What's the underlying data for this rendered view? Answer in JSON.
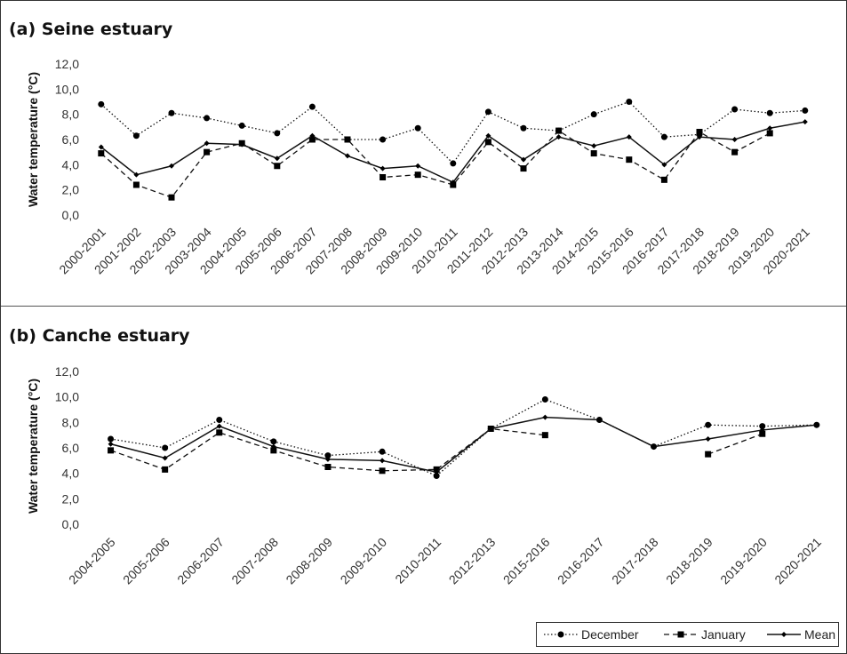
{
  "chart_data": [
    {
      "type": "line",
      "title": "(a) Seine estuary",
      "ylabel": "Water temperature (°C)",
      "ylim": [
        0,
        12
      ],
      "yticks": [
        "0,0",
        "2,0",
        "4,0",
        "6,0",
        "8,0",
        "10,0",
        "12,0"
      ],
      "grid": false,
      "categories": [
        "2000-2001",
        "2001-2002",
        "2002-2003",
        "2003-2004",
        "2004-2005",
        "2005-2006",
        "2006-2007",
        "2007-2008",
        "2008-2009",
        "2009-2010",
        "2010-2011",
        "2011-2012",
        "2012-2013",
        "2013-2014",
        "2014-2015",
        "2015-2016",
        "2016-2017",
        "2017-2018",
        "2018-2019",
        "2019-2020",
        "2020-2021"
      ],
      "series": [
        {
          "name": "December",
          "style": "dotted",
          "marker": "circle",
          "values": [
            8.8,
            6.3,
            8.1,
            7.7,
            7.1,
            6.5,
            8.6,
            6.0,
            6.0,
            6.9,
            4.1,
            8.2,
            6.9,
            6.7,
            8.0,
            9.0,
            6.2,
            6.4,
            8.4,
            8.1,
            8.3
          ]
        },
        {
          "name": "January",
          "style": "dashed",
          "marker": "square",
          "values": [
            4.9,
            2.4,
            1.4,
            5.0,
            5.7,
            3.9,
            6.0,
            6.0,
            3.0,
            3.2,
            2.4,
            5.8,
            3.7,
            6.7,
            4.9,
            4.4,
            2.8,
            6.6,
            5.0,
            6.5,
            null
          ]
        },
        {
          "name": "Mean",
          "style": "solid",
          "marker": "diamond",
          "values": [
            5.4,
            3.2,
            3.9,
            5.7,
            5.6,
            4.5,
            6.3,
            4.7,
            3.7,
            3.9,
            2.6,
            6.3,
            4.4,
            6.2,
            5.5,
            6.2,
            4.0,
            6.2,
            6.0,
            6.9,
            7.4
          ]
        }
      ]
    },
    {
      "type": "line",
      "title": "(b) Canche estuary",
      "ylabel": "Water temperature (°C)",
      "ylim": [
        0,
        12
      ],
      "yticks": [
        "0,0",
        "2,0",
        "4,0",
        "6,0",
        "8,0",
        "10,0",
        "12,0"
      ],
      "grid": false,
      "categories": [
        "2004-2005",
        "2005-2006",
        "2006-2007",
        "2007-2008",
        "2008-2009",
        "2009-2010",
        "2010-2011",
        "2012-2013",
        "2015-2016",
        "2016-2017",
        "2017-2018",
        "2018-2019",
        "2019-2020",
        "2020-2021"
      ],
      "series": [
        {
          "name": "December",
          "style": "dotted",
          "marker": "circle",
          "values": [
            6.7,
            6.0,
            8.2,
            6.5,
            5.4,
            5.7,
            3.8,
            7.5,
            9.8,
            8.2,
            6.1,
            7.8,
            7.7,
            7.8
          ]
        },
        {
          "name": "January",
          "style": "dashed",
          "marker": "square",
          "values": [
            5.8,
            4.3,
            7.2,
            5.8,
            4.5,
            4.2,
            4.3,
            7.5,
            7.0,
            null,
            null,
            5.5,
            7.1,
            null
          ]
        },
        {
          "name": "Mean",
          "style": "solid",
          "marker": "diamond",
          "values": [
            6.3,
            5.2,
            7.7,
            6.1,
            5.1,
            5.0,
            4.1,
            7.5,
            8.4,
            8.2,
            6.1,
            6.7,
            7.4,
            7.8
          ]
        }
      ]
    }
  ],
  "legend": {
    "position": "bottom-right",
    "items": [
      "December",
      "January",
      "Mean"
    ]
  }
}
